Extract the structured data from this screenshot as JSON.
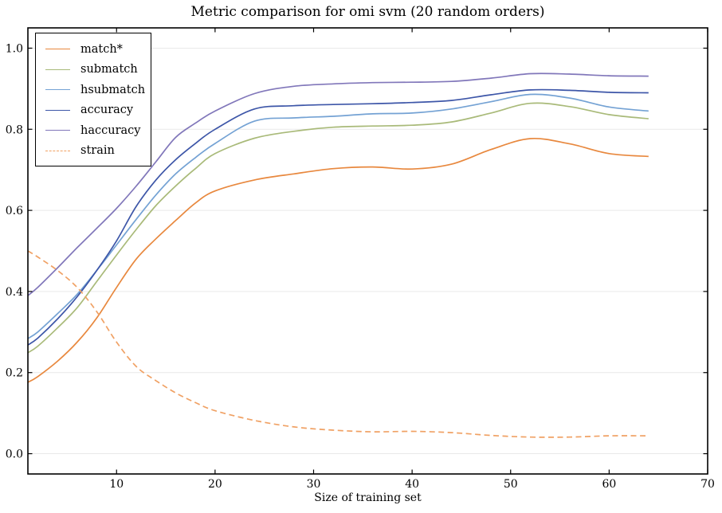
{
  "title": "Metric comparison for omi svm (20 random orders)",
  "xlabel": "Size of training set",
  "chart_data": {
    "type": "line",
    "title": "Metric comparison for omi svm (20 random orders)",
    "xlabel": "Size of training set",
    "ylabel": "",
    "xlim": [
      1,
      70
    ],
    "ylim": [
      -0.05,
      1.05
    ],
    "x_ticks": [
      10,
      20,
      30,
      40,
      50,
      60,
      70
    ],
    "x_tick_labels": [
      "10",
      "20",
      "30",
      "40",
      "50",
      "60",
      "70"
    ],
    "y_ticks": [
      0.0,
      0.2,
      0.4,
      0.6,
      0.8,
      1.0
    ],
    "y_tick_labels": [
      "0.0",
      "0.2",
      "0.4",
      "0.6",
      "0.8",
      "1.0"
    ],
    "grid": "horizontal",
    "grid_color": "#e9e9e9",
    "spine_color": "#000000",
    "legend_position": "upper left",
    "x": [
      1,
      2,
      4,
      6,
      8,
      10,
      12,
      14,
      16,
      18,
      20,
      24,
      28,
      32,
      36,
      40,
      44,
      48,
      52,
      56,
      60,
      64
    ],
    "series": [
      {
        "name": "match*",
        "color": "#e8883e",
        "style": "solid",
        "values": [
          0.176,
          0.19,
          0.228,
          0.275,
          0.335,
          0.41,
          0.48,
          0.53,
          0.575,
          0.618,
          0.648,
          0.675,
          0.69,
          0.703,
          0.707,
          0.702,
          0.714,
          0.75,
          0.777,
          0.764,
          0.74,
          0.733
        ]
      },
      {
        "name": "submatch",
        "color": "#a9ba79",
        "style": "solid",
        "values": [
          0.249,
          0.265,
          0.31,
          0.36,
          0.425,
          0.49,
          0.553,
          0.612,
          0.66,
          0.703,
          0.74,
          0.778,
          0.795,
          0.805,
          0.808,
          0.81,
          0.818,
          0.84,
          0.864,
          0.856,
          0.836,
          0.826
        ]
      },
      {
        "name": "hsubmatch",
        "color": "#74a2d4",
        "style": "solid",
        "values": [
          0.284,
          0.3,
          0.345,
          0.393,
          0.452,
          0.515,
          0.578,
          0.638,
          0.69,
          0.73,
          0.765,
          0.82,
          0.828,
          0.832,
          0.838,
          0.84,
          0.85,
          0.868,
          0.886,
          0.877,
          0.855,
          0.845
        ]
      },
      {
        "name": "accuracy",
        "color": "#3d56a8",
        "style": "solid",
        "values": [
          0.268,
          0.285,
          0.332,
          0.387,
          0.452,
          0.525,
          0.61,
          0.675,
          0.725,
          0.765,
          0.8,
          0.85,
          0.858,
          0.861,
          0.863,
          0.866,
          0.871,
          0.885,
          0.897,
          0.896,
          0.891,
          0.89
        ]
      },
      {
        "name": "haccuracy",
        "color": "#8177ba",
        "style": "solid",
        "values": [
          0.39,
          0.41,
          0.458,
          0.508,
          0.556,
          0.605,
          0.66,
          0.72,
          0.78,
          0.815,
          0.845,
          0.888,
          0.906,
          0.912,
          0.915,
          0.916,
          0.918,
          0.926,
          0.937,
          0.936,
          0.932,
          0.931
        ]
      },
      {
        "name": "strain",
        "color": "#f0a164",
        "style": "dashed",
        "values": [
          0.5,
          0.485,
          0.452,
          0.41,
          0.35,
          0.275,
          0.215,
          0.18,
          0.15,
          0.126,
          0.106,
          0.082,
          0.066,
          0.058,
          0.054,
          0.055,
          0.052,
          0.045,
          0.041,
          0.041,
          0.044,
          0.044
        ]
      }
    ]
  }
}
